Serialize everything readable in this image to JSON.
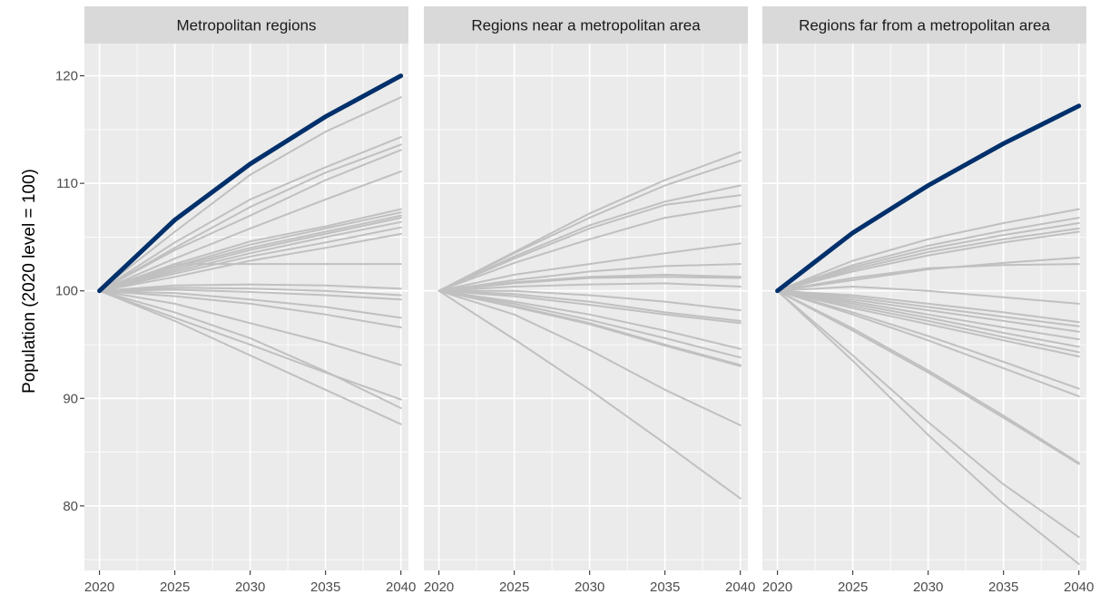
{
  "chart_data": {
    "type": "line",
    "ylabel": "Population (2020 level = 100)",
    "ylim": [
      74,
      123
    ],
    "yticks": [
      80,
      90,
      100,
      110,
      120
    ],
    "xlim": [
      2019,
      2040.5
    ],
    "xticks": [
      2020,
      2025,
      2030,
      2035,
      2040
    ],
    "x": [
      2020,
      2025,
      2030,
      2035,
      2040
    ],
    "grid": true,
    "colors": {
      "highlight": "#00306b",
      "other": "#c0c0c0",
      "panel": "#ebebeb",
      "strip": "#d9d9d9"
    },
    "panels": [
      {
        "title": "Metropolitan regions",
        "series": [
          {
            "values": [
              100,
              106.6,
              111.8,
              116.2,
              120.0
            ],
            "highlight": true
          },
          {
            "values": [
              100,
              105.5,
              110.8,
              114.8,
              118.0
            ]
          },
          {
            "values": [
              100,
              104.5,
              108.5,
              111.5,
              114.3
            ]
          },
          {
            "values": [
              100,
              104.0,
              107.8,
              111.0,
              113.6
            ]
          },
          {
            "values": [
              100,
              103.8,
              107.0,
              110.3,
              113.1
            ]
          },
          {
            "values": [
              100,
              103.0,
              105.8,
              108.5,
              111.1
            ]
          },
          {
            "values": [
              100,
              102.5,
              104.6,
              106.0,
              107.6
            ]
          },
          {
            "values": [
              100,
              102.3,
              104.3,
              105.8,
              107.3
            ]
          },
          {
            "values": [
              100,
              102.2,
              104.0,
              105.5,
              107.0
            ]
          },
          {
            "values": [
              100,
              102.0,
              103.8,
              105.3,
              106.8
            ]
          },
          {
            "values": [
              100,
              101.8,
              103.5,
              105.0,
              106.4
            ]
          },
          {
            "values": [
              100,
              101.6,
              103.2,
              104.5,
              105.9
            ]
          },
          {
            "values": [
              100,
              101.3,
              102.8,
              104.0,
              105.3
            ]
          },
          {
            "values": [
              100,
              102.5,
              102.5,
              102.5,
              102.5
            ]
          },
          {
            "values": [
              100,
              100.5,
              100.6,
              100.5,
              100.2
            ]
          },
          {
            "values": [
              100,
              100.3,
              100.2,
              100.0,
              99.6
            ]
          },
          {
            "values": [
              100,
              100.1,
              99.9,
              99.6,
              99.2
            ]
          },
          {
            "values": [
              100,
              99.8,
              99.2,
              98.5,
              97.5
            ]
          },
          {
            "values": [
              100,
              99.5,
              98.8,
              97.8,
              96.6
            ]
          },
          {
            "values": [
              100,
              98.8,
              97.0,
              95.2,
              93.1
            ]
          },
          {
            "values": [
              100,
              97.5,
              95.0,
              92.4,
              89.9
            ]
          },
          {
            "values": [
              100,
              98.0,
              95.6,
              92.5,
              89.1
            ]
          },
          {
            "values": [
              100,
              97.2,
              94.0,
              90.8,
              87.6
            ]
          }
        ]
      },
      {
        "title": "Regions near a metropolitan area",
        "series": [
          {
            "values": [
              100,
              103.6,
              107.2,
              110.3,
              112.9
            ]
          },
          {
            "values": [
              100,
              103.5,
              106.8,
              109.8,
              112.1
            ]
          },
          {
            "values": [
              100,
              103.2,
              106.1,
              108.3,
              109.8
            ]
          },
          {
            "values": [
              100,
              103.0,
              105.8,
              108.0,
              108.9
            ]
          },
          {
            "values": [
              100,
              102.6,
              104.8,
              106.8,
              107.9
            ]
          },
          {
            "values": [
              100,
              101.5,
              102.5,
              103.5,
              104.4
            ]
          },
          {
            "values": [
              100,
              101.0,
              101.8,
              102.3,
              102.5
            ]
          },
          {
            "values": [
              100,
              100.8,
              101.3,
              101.5,
              101.3
            ]
          },
          {
            "values": [
              100,
              100.7,
              101.2,
              101.3,
              101.2
            ]
          },
          {
            "values": [
              100,
              100.4,
              100.6,
              100.7,
              100.4
            ]
          },
          {
            "values": [
              100,
              100.0,
              99.6,
              99.0,
              98.2
            ]
          },
          {
            "values": [
              100,
              99.7,
              99.0,
              98.0,
              97.2
            ]
          },
          {
            "values": [
              100,
              99.5,
              98.7,
              97.8,
              97.0
            ]
          },
          {
            "values": [
              100,
              99.0,
              97.8,
              96.3,
              94.6
            ]
          },
          {
            "values": [
              100,
              98.8,
              97.3,
              95.6,
              93.8
            ]
          },
          {
            "values": [
              100,
              98.6,
              97.0,
              95.0,
              93.1
            ]
          },
          {
            "values": [
              100,
              98.5,
              96.9,
              94.9,
              93.0
            ]
          },
          {
            "values": [
              100,
              97.8,
              94.5,
              90.8,
              87.5
            ]
          },
          {
            "values": [
              100,
              95.5,
              90.8,
              85.8,
              80.7
            ]
          }
        ]
      },
      {
        "title": "Regions far from a metropolitan area",
        "series": [
          {
            "values": [
              100,
              105.4,
              109.8,
              113.7,
              117.2
            ],
            "highlight": true
          },
          {
            "values": [
              100,
              102.8,
              104.8,
              106.3,
              107.6
            ]
          },
          {
            "values": [
              100,
              102.4,
              104.2,
              105.6,
              106.8
            ]
          },
          {
            "values": [
              100,
              102.2,
              103.9,
              105.2,
              106.3
            ]
          },
          {
            "values": [
              100,
              102.0,
              103.6,
              104.8,
              105.8
            ]
          },
          {
            "values": [
              100,
              101.8,
              103.3,
              104.5,
              105.5
            ]
          },
          {
            "values": [
              100,
              101.0,
              102.0,
              102.6,
              103.1
            ]
          },
          {
            "values": [
              100,
              101.2,
              102.1,
              102.4,
              102.5
            ]
          },
          {
            "values": [
              100,
              100.4,
              100.0,
              99.4,
              98.8
            ]
          },
          {
            "values": [
              100,
              99.6,
              98.8,
              98.0,
              97.1
            ]
          },
          {
            "values": [
              100,
              99.4,
              98.5,
              97.6,
              96.7
            ]
          },
          {
            "values": [
              100,
              99.2,
              98.2,
              97.2,
              96.2
            ]
          },
          {
            "values": [
              100,
              99.0,
              97.8,
              96.6,
              95.5
            ]
          },
          {
            "values": [
              100,
              98.8,
              97.5,
              96.1,
              94.8
            ]
          },
          {
            "values": [
              100,
              98.6,
              97.2,
              95.7,
              94.3
            ]
          },
          {
            "values": [
              100,
              98.4,
              96.9,
              95.4,
              93.9
            ]
          },
          {
            "values": [
              100,
              98.0,
              95.8,
              93.4,
              90.9
            ]
          },
          {
            "values": [
              100,
              97.8,
              95.4,
              92.8,
              90.2
            ]
          },
          {
            "values": [
              100,
              96.5,
              92.6,
              88.4,
              84.0
            ]
          },
          {
            "values": [
              100,
              96.3,
              92.4,
              88.2,
              83.9
            ]
          },
          {
            "values": [
              100,
              94.0,
              87.8,
              82.0,
              77.1
            ]
          },
          {
            "values": [
              100,
              93.5,
              86.6,
              80.2,
              74.6
            ]
          }
        ]
      }
    ]
  }
}
